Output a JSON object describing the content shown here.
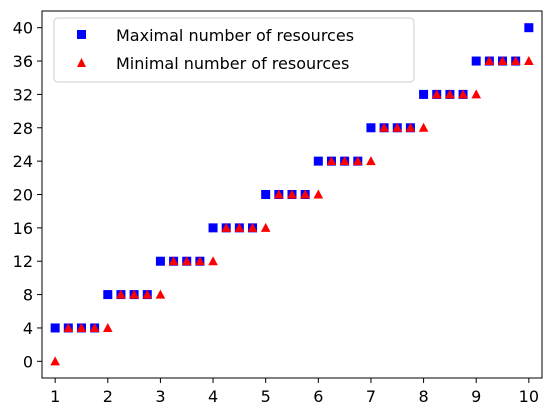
{
  "chart_data": {
    "type": "scatter",
    "title": "",
    "xlabel": "",
    "ylabel": "",
    "xlim": [
      0.75,
      10.25
    ],
    "ylim": [
      -2,
      42
    ],
    "xticks": [
      1,
      2,
      3,
      4,
      5,
      6,
      7,
      8,
      9,
      10
    ],
    "yticks": [
      0,
      4,
      8,
      12,
      16,
      20,
      24,
      28,
      32,
      36,
      40
    ],
    "grid": false,
    "legend": "top-left",
    "series": [
      {
        "name": "Maximal number of resources",
        "marker": "square",
        "color": "#0000ff",
        "x": [
          1,
          1.25,
          1.5,
          1.75,
          2,
          2.25,
          2.5,
          2.75,
          3,
          3.25,
          3.5,
          3.75,
          4,
          4.25,
          4.5,
          4.75,
          5,
          5.25,
          5.5,
          5.75,
          6,
          6.25,
          6.5,
          6.75,
          7,
          7.25,
          7.5,
          7.75,
          8,
          8.25,
          8.5,
          8.75,
          9,
          9.25,
          9.5,
          9.75,
          10
        ],
        "y": [
          4,
          4,
          4,
          4,
          8,
          8,
          8,
          8,
          12,
          12,
          12,
          12,
          16,
          16,
          16,
          16,
          20,
          20,
          20,
          20,
          24,
          24,
          24,
          24,
          28,
          28,
          28,
          28,
          32,
          32,
          32,
          32,
          36,
          36,
          36,
          36,
          40
        ]
      },
      {
        "name": "Minimal number of resources",
        "marker": "triangle",
        "color": "#ff0000",
        "x": [
          1,
          1.25,
          1.5,
          1.75,
          2,
          2.25,
          2.5,
          2.75,
          3,
          3.25,
          3.5,
          3.75,
          4,
          4.25,
          4.5,
          4.75,
          5,
          5.25,
          5.5,
          5.75,
          6,
          6.25,
          6.5,
          6.75,
          7,
          7.25,
          7.5,
          7.75,
          8,
          8.25,
          8.5,
          8.75,
          9,
          9.25,
          9.5,
          9.75,
          10
        ],
        "y": [
          0,
          4,
          4,
          4,
          4,
          8,
          8,
          8,
          8,
          12,
          12,
          12,
          12,
          16,
          16,
          16,
          16,
          20,
          20,
          20,
          20,
          24,
          24,
          24,
          24,
          28,
          28,
          28,
          28,
          32,
          32,
          32,
          32,
          36,
          36,
          36,
          36
        ]
      }
    ]
  }
}
